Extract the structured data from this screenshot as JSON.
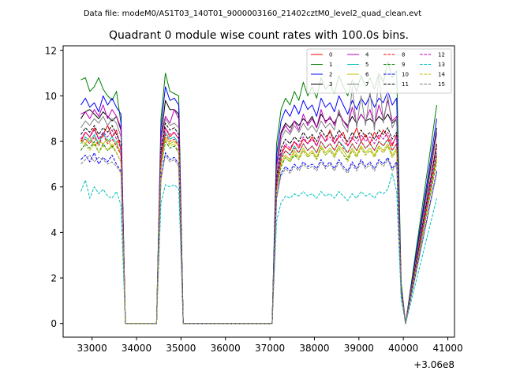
{
  "chart_data": {
    "type": "line",
    "suptitle": "Data file: modeM0/AS1T03_140T01_9000003160_21402cztM0_level2_quad_clean.evt",
    "title": "Quadrant 0 module wise count rates with 100.0s bins.",
    "xlabel": "",
    "ylabel": "",
    "x_offset_label": "+3.06e8",
    "xlim": [
      32350,
      41150
    ],
    "ylim": [
      -0.6,
      12.2
    ],
    "x_ticks": [
      33000,
      34000,
      35000,
      36000,
      37000,
      38000,
      39000,
      40000,
      41000
    ],
    "x_tick_labels": [
      "33000",
      "34000",
      "35000",
      "36000",
      "37000",
      "38000",
      "39000",
      "40000",
      "41000"
    ],
    "y_ticks": [
      0,
      2,
      4,
      6,
      8,
      10,
      12
    ],
    "y_tick_labels": [
      "0",
      "2",
      "4",
      "6",
      "8",
      "10",
      "12"
    ],
    "grid": false,
    "legend_position": "top-right",
    "legend_columns": 4,
    "x": [
      32750,
      32850,
      32950,
      33050,
      33150,
      33250,
      33350,
      33450,
      33550,
      33650,
      33750,
      34450,
      34550,
      34650,
      34750,
      34850,
      34950,
      35050,
      37050,
      37150,
      37250,
      37350,
      37450,
      37550,
      37650,
      37750,
      37850,
      37950,
      38050,
      38150,
      38250,
      38350,
      38450,
      38550,
      38650,
      38750,
      38850,
      38950,
      39050,
      39150,
      39250,
      39350,
      39450,
      39550,
      39650,
      39750,
      39850,
      39950,
      40050,
      40750
    ],
    "series": [
      {
        "name": "0",
        "color": "#ff0000",
        "dash": "solid",
        "values": [
          8.0,
          8.4,
          8.2,
          8.6,
          8.1,
          8.3,
          8.7,
          8.2,
          8.5,
          7.6,
          0.0,
          0.0,
          7.4,
          8.6,
          8.2,
          8.4,
          8.1,
          0.0,
          0.0,
          6.2,
          7.4,
          7.8,
          7.6,
          8.0,
          7.7,
          8.1,
          7.9,
          8.2,
          7.8,
          8.3,
          8.0,
          8.5,
          7.9,
          8.2,
          8.4,
          7.8,
          8.1,
          8.6,
          8.0,
          8.3,
          7.9,
          8.4,
          8.1,
          8.5,
          8.2,
          7.8,
          8.3,
          1.5,
          0.0,
          7.9
        ]
      },
      {
        "name": "1",
        "color": "#008000",
        "dash": "solid",
        "values": [
          10.7,
          10.8,
          10.2,
          10.4,
          10.8,
          10.3,
          10.0,
          9.8,
          10.2,
          8.8,
          0.0,
          0.0,
          9.0,
          11.0,
          10.2,
          10.1,
          10.0,
          0.0,
          0.0,
          7.9,
          9.4,
          9.9,
          9.6,
          10.2,
          9.8,
          10.6,
          10.0,
          10.4,
          9.9,
          10.8,
          10.3,
          10.5,
          10.1,
          10.9,
          10.4,
          10.0,
          10.7,
          10.2,
          10.9,
          10.4,
          10.8,
          10.3,
          11.0,
          10.6,
          11.5,
          10.8,
          11.1,
          1.8,
          0.0,
          9.6
        ]
      },
      {
        "name": "2",
        "color": "#0000ff",
        "dash": "solid",
        "values": [
          9.6,
          9.9,
          9.5,
          9.7,
          9.3,
          10.0,
          9.6,
          9.9,
          9.5,
          9.2,
          0.0,
          0.0,
          8.6,
          10.4,
          9.8,
          9.9,
          9.6,
          0.0,
          0.0,
          7.4,
          8.9,
          9.4,
          9.1,
          9.6,
          9.2,
          9.8,
          9.4,
          9.6,
          9.1,
          9.9,
          9.5,
          9.7,
          9.3,
          10.0,
          9.6,
          9.2,
          9.8,
          9.4,
          9.9,
          9.6,
          10.0,
          9.5,
          9.9,
          9.7,
          10.2,
          9.6,
          9.9,
          1.6,
          0.0,
          9.0
        ]
      },
      {
        "name": "3",
        "color": "#000000",
        "dash": "solid",
        "values": [
          9.0,
          9.3,
          9.4,
          9.2,
          9.0,
          9.3,
          9.1,
          8.9,
          9.1,
          8.5,
          0.0,
          0.0,
          8.1,
          9.8,
          9.4,
          9.4,
          9.2,
          0.0,
          0.0,
          7.0,
          8.4,
          8.8,
          8.6,
          8.9,
          8.7,
          9.0,
          8.8,
          9.1,
          8.6,
          9.2,
          8.9,
          9.0,
          8.8,
          9.2,
          8.9,
          8.7,
          9.1,
          8.8,
          9.2,
          8.9,
          9.0,
          8.8,
          9.1,
          8.9,
          9.2,
          8.8,
          9.0,
          1.5,
          0.0,
          8.6
        ]
      },
      {
        "name": "4",
        "color": "#bf00bf",
        "dash": "solid",
        "values": [
          9.2,
          9.3,
          9.0,
          9.4,
          9.1,
          9.6,
          9.0,
          9.4,
          9.1,
          8.6,
          0.0,
          0.0,
          8.2,
          9.1,
          8.8,
          9.4,
          9.0,
          0.0,
          0.0,
          6.9,
          8.3,
          8.7,
          8.4,
          8.9,
          8.5,
          9.2,
          8.7,
          9.0,
          8.6,
          9.4,
          8.8,
          9.1,
          8.7,
          9.3,
          8.9,
          8.6,
          9.5,
          8.8,
          9.2,
          8.9,
          9.4,
          8.7,
          9.6,
          9.0,
          9.8,
          8.9,
          9.1,
          1.5,
          0.0,
          8.4
        ]
      },
      {
        "name": "5",
        "color": "#00bfbf",
        "dash": "solid",
        "values": [
          7.9,
          8.2,
          8.0,
          8.3,
          7.9,
          8.4,
          8.0,
          8.2,
          7.9,
          7.5,
          0.0,
          0.0,
          7.2,
          8.4,
          8.1,
          8.2,
          7.9,
          0.0,
          0.0,
          6.1,
          7.3,
          7.6,
          7.4,
          7.8,
          7.5,
          7.9,
          7.6,
          7.8,
          7.5,
          8.0,
          7.7,
          7.9,
          7.6,
          8.0,
          7.8,
          7.5,
          7.9,
          7.6,
          8.0,
          7.7,
          7.9,
          7.6,
          8.0,
          7.8,
          8.1,
          7.6,
          7.9,
          1.4,
          0.0,
          7.5
        ]
      },
      {
        "name": "6",
        "color": "#bfbf00",
        "dash": "solid",
        "values": [
          8.1,
          7.9,
          8.2,
          7.8,
          8.0,
          7.9,
          8.1,
          7.7,
          8.0,
          7.4,
          0.0,
          0.0,
          7.0,
          8.2,
          7.9,
          8.0,
          7.8,
          0.0,
          0.0,
          5.9,
          7.1,
          7.4,
          7.2,
          7.6,
          7.3,
          7.7,
          7.4,
          7.6,
          7.3,
          7.8,
          7.5,
          7.7,
          7.4,
          7.8,
          7.6,
          7.3,
          7.7,
          7.4,
          7.8,
          7.5,
          7.7,
          7.4,
          7.8,
          7.6,
          7.9,
          7.4,
          7.7,
          1.4,
          0.0,
          7.3
        ]
      },
      {
        "name": "7",
        "color": "#808080",
        "dash": "solid",
        "values": [
          8.6,
          8.9,
          8.7,
          9.0,
          8.8,
          9.1,
          8.7,
          9.0,
          8.8,
          8.2,
          0.0,
          0.0,
          7.8,
          9.0,
          8.7,
          8.8,
          8.6,
          0.0,
          0.0,
          6.6,
          8.1,
          8.5,
          8.3,
          8.7,
          8.4,
          8.8,
          8.5,
          8.7,
          8.4,
          8.9,
          8.6,
          8.8,
          8.5,
          9.4,
          8.7,
          8.4,
          10.4,
          8.6,
          10.0,
          8.7,
          10.2,
          8.5,
          11.0,
          8.8,
          10.0,
          8.6,
          9.0,
          1.5,
          0.0,
          8.3
        ]
      },
      {
        "name": "8",
        "color": "#ff0000",
        "dash": "dashed",
        "values": [
          8.0,
          8.1,
          7.9,
          8.2,
          7.8,
          8.3,
          7.9,
          8.1,
          7.8,
          7.4,
          0.0,
          0.0,
          7.1,
          8.3,
          8.0,
          8.1,
          7.8,
          0.0,
          0.0,
          6.0,
          7.2,
          7.6,
          7.4,
          7.7,
          7.5,
          7.9,
          7.6,
          7.8,
          7.5,
          8.0,
          7.7,
          7.9,
          7.6,
          8.0,
          7.7,
          7.5,
          7.9,
          7.6,
          8.0,
          7.7,
          7.9,
          7.6,
          8.0,
          7.8,
          8.1,
          7.6,
          7.9,
          1.4,
          0.0,
          7.4
        ]
      },
      {
        "name": "9",
        "color": "#008000",
        "dash": "dashed",
        "values": [
          7.6,
          7.9,
          7.7,
          8.0,
          7.5,
          7.9,
          7.6,
          7.8,
          7.5,
          7.1,
          0.0,
          0.0,
          6.8,
          8.0,
          7.7,
          7.8,
          7.5,
          0.0,
          0.0,
          5.8,
          6.9,
          7.3,
          7.1,
          7.4,
          7.2,
          7.6,
          7.3,
          7.5,
          7.2,
          7.7,
          7.4,
          7.6,
          7.3,
          7.7,
          7.4,
          7.2,
          7.6,
          7.3,
          7.7,
          7.4,
          7.6,
          7.3,
          7.7,
          7.5,
          7.8,
          7.3,
          7.6,
          1.3,
          0.0,
          7.1
        ]
      },
      {
        "name": "10",
        "color": "#0000ff",
        "dash": "dashed",
        "values": [
          7.2,
          7.4,
          7.1,
          7.5,
          7.0,
          7.3,
          7.1,
          7.4,
          7.0,
          6.7,
          0.0,
          0.0,
          6.4,
          7.5,
          7.2,
          7.3,
          7.0,
          0.0,
          0.0,
          5.5,
          6.6,
          6.9,
          6.7,
          7.0,
          6.8,
          7.1,
          6.9,
          7.0,
          6.8,
          7.2,
          6.9,
          7.1,
          6.8,
          7.2,
          6.9,
          6.7,
          7.1,
          6.8,
          7.2,
          6.9,
          7.1,
          6.8,
          7.2,
          7.0,
          7.3,
          6.8,
          7.1,
          1.3,
          0.0,
          6.7
        ]
      },
      {
        "name": "11",
        "color": "#000000",
        "dash": "dashed",
        "values": [
          8.3,
          8.6,
          8.4,
          8.7,
          8.3,
          8.6,
          8.4,
          8.7,
          8.3,
          7.9,
          0.0,
          0.0,
          7.6,
          8.8,
          8.5,
          8.6,
          8.3,
          0.0,
          0.0,
          6.4,
          7.7,
          8.1,
          7.9,
          8.2,
          8.0,
          8.4,
          8.1,
          8.3,
          8.0,
          8.5,
          8.2,
          8.4,
          8.1,
          8.5,
          8.2,
          8.0,
          8.4,
          8.1,
          8.5,
          8.2,
          8.4,
          8.1,
          8.5,
          8.3,
          8.6,
          8.1,
          8.4,
          1.5,
          0.0,
          7.9
        ]
      },
      {
        "name": "12",
        "color": "#bf00bf",
        "dash": "dashed",
        "values": [
          8.1,
          8.4,
          8.2,
          8.5,
          8.1,
          8.4,
          8.2,
          8.5,
          8.1,
          7.7,
          0.0,
          0.0,
          7.4,
          8.6,
          8.3,
          8.4,
          8.1,
          0.0,
          0.0,
          6.3,
          7.5,
          7.9,
          7.7,
          8.0,
          7.8,
          8.2,
          7.9,
          8.1,
          7.8,
          8.3,
          8.0,
          8.2,
          7.9,
          8.3,
          8.0,
          7.8,
          8.2,
          7.9,
          8.3,
          8.0,
          8.2,
          7.9,
          8.3,
          8.1,
          8.4,
          7.9,
          8.2,
          1.5,
          0.0,
          7.7
        ]
      },
      {
        "name": "13",
        "color": "#00bfbf",
        "dash": "dashed",
        "values": [
          5.8,
          6.3,
          5.5,
          6.0,
          5.7,
          5.9,
          5.6,
          5.5,
          5.8,
          5.2,
          0.0,
          0.0,
          5.3,
          6.1,
          6.0,
          6.1,
          5.9,
          0.0,
          0.0,
          4.5,
          5.3,
          5.6,
          5.5,
          5.7,
          5.6,
          5.8,
          5.6,
          5.7,
          5.5,
          5.8,
          5.6,
          5.7,
          5.5,
          5.8,
          5.6,
          5.4,
          5.7,
          5.5,
          5.8,
          5.6,
          5.7,
          5.5,
          5.8,
          5.7,
          5.9,
          6.6,
          5.8,
          1.1,
          0.0,
          5.5
        ]
      },
      {
        "name": "14",
        "color": "#bfbf00",
        "dash": "dashed",
        "values": [
          8.0,
          7.8,
          7.6,
          7.9,
          7.5,
          7.8,
          7.6,
          7.9,
          7.5,
          7.1,
          0.0,
          0.0,
          6.9,
          8.1,
          7.8,
          7.9,
          7.6,
          0.0,
          0.0,
          5.8,
          7.0,
          7.3,
          7.1,
          7.5,
          7.2,
          7.6,
          7.3,
          7.5,
          7.2,
          7.7,
          7.4,
          7.6,
          7.3,
          7.7,
          7.4,
          7.1,
          7.6,
          7.3,
          7.7,
          7.4,
          7.6,
          7.3,
          7.7,
          7.5,
          7.8,
          7.3,
          7.6,
          1.4,
          0.0,
          7.2
        ]
      },
      {
        "name": "15",
        "color": "#808080",
        "dash": "dashed",
        "values": [
          7.0,
          7.2,
          7.4,
          7.1,
          7.3,
          7.2,
          7.0,
          7.1,
          6.9,
          6.6,
          0.0,
          0.0,
          6.3,
          7.4,
          7.1,
          7.2,
          6.9,
          0.0,
          0.0,
          5.5,
          6.5,
          6.8,
          6.6,
          6.9,
          6.7,
          7.0,
          6.8,
          6.9,
          6.7,
          7.1,
          6.8,
          7.0,
          6.7,
          7.1,
          6.8,
          6.6,
          7.0,
          6.7,
          7.1,
          6.8,
          7.0,
          6.7,
          7.1,
          6.9,
          7.2,
          6.7,
          7.0,
          1.3,
          0.0,
          6.6
        ]
      }
    ]
  }
}
